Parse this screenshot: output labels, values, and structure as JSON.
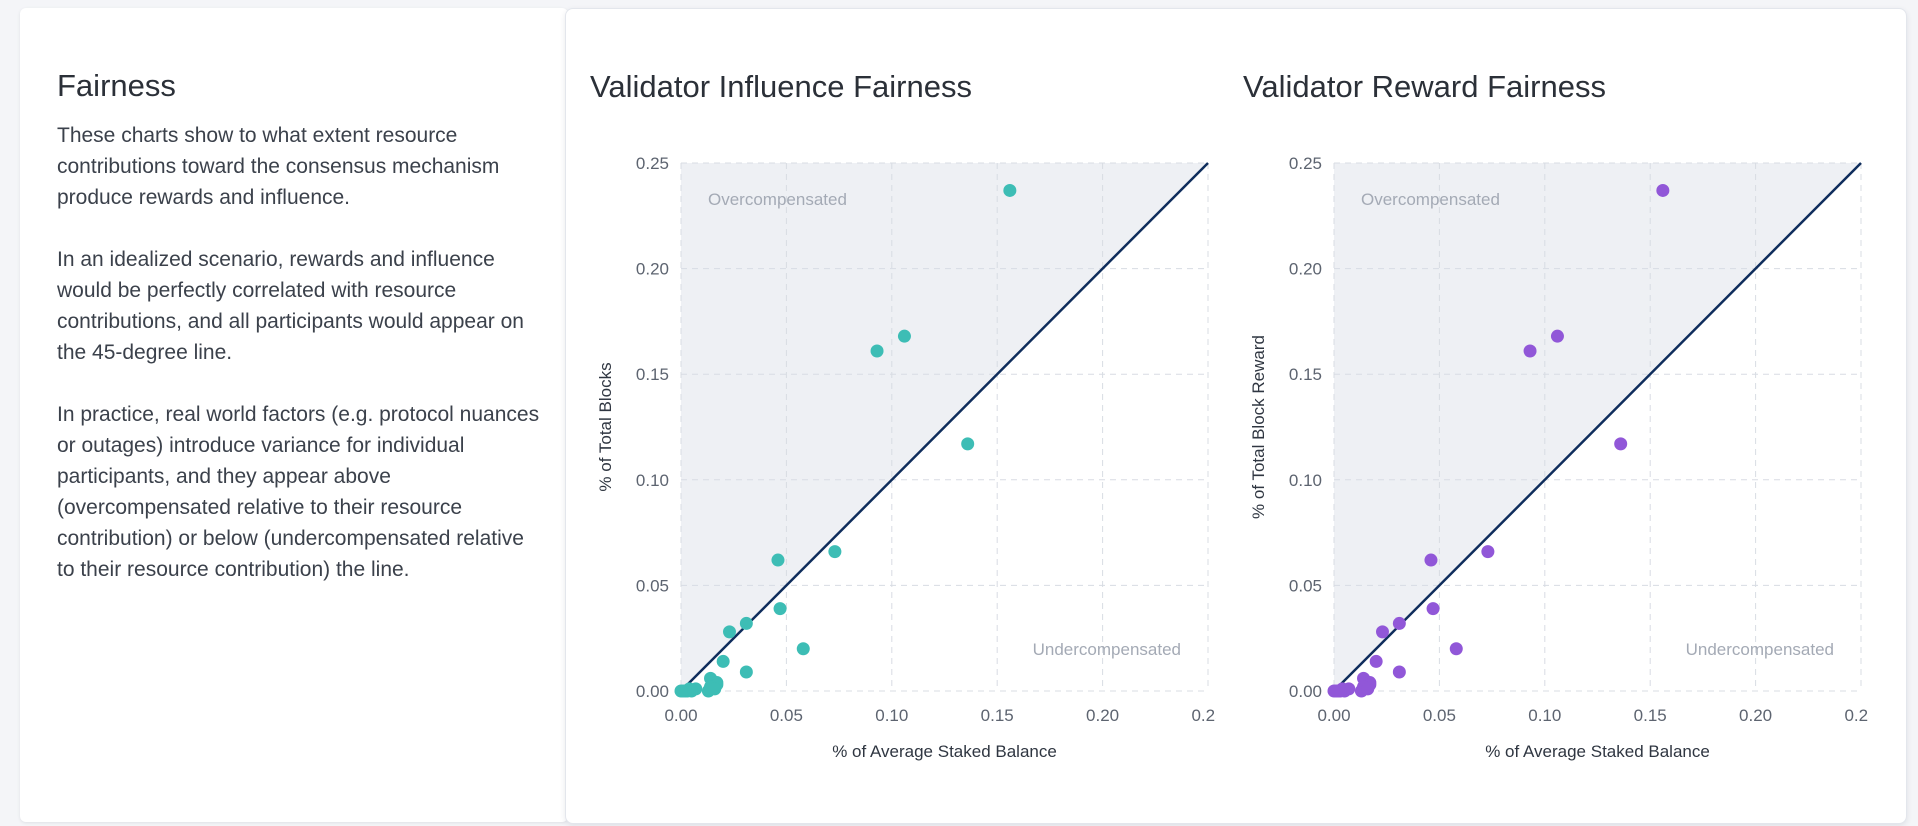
{
  "intro": {
    "title": "Fairness",
    "paragraphs": [
      "These charts show to what extent resource contributions toward the consensus mechanism produce rewards and influence.",
      "In an idealized scenario, rewards and influence would be perfectly correlated with resource contributions, and all participants would appear on the 45-degree line.",
      "In practice, real world factors (e.g. protocol nuances or outages) introduce variance for individual participants, and they appear above (overcompensated relative to their resource contribution) or below (undercompensated relative to their resource contribution) the line."
    ]
  },
  "colors": {
    "influence_points": "#3dbdb5",
    "reward_points": "#9157d8",
    "diagonal": "#0f2d5c",
    "shaded_region": "#eef0f4",
    "grid": "#d8dce3"
  },
  "chart_data": [
    {
      "type": "scatter",
      "title": "Validator Influence Fairness",
      "xlabel": "% of Average Staked Balance",
      "ylabel": "% of Total Blocks",
      "xlim": [
        0,
        0.25
      ],
      "ylim": [
        0,
        0.25
      ],
      "ticks": [
        "0.00",
        "0.05",
        "0.10",
        "0.15",
        "0.20",
        "0.25"
      ],
      "grid": true,
      "reference_line": "y = x",
      "region_labels": {
        "above": "Overcompensated",
        "below": "Undercompensated"
      },
      "point_color": "#3dbdb5",
      "series": [
        {
          "x": [
            0.156,
            0.106,
            0.093,
            0.136,
            0.073,
            0.046,
            0.047,
            0.058,
            0.031,
            0.023,
            0.031,
            0.02,
            0.014,
            0.017,
            0.017,
            0.014,
            0.013,
            0.016,
            0.007,
            0.005,
            0.004,
            0.003,
            0.002,
            0.001,
            0.0
          ],
          "y": [
            0.237,
            0.168,
            0.161,
            0.117,
            0.066,
            0.062,
            0.039,
            0.02,
            0.032,
            0.028,
            0.009,
            0.014,
            0.006,
            0.004,
            0.003,
            0.002,
            0.0,
            0.001,
            0.001,
            0.0,
            0.001,
            0.0,
            0.0,
            0.0,
            0.0
          ]
        }
      ]
    },
    {
      "type": "scatter",
      "title": "Validator Reward Fairness",
      "xlabel": "% of Average Staked Balance",
      "ylabel": "% of Total Block Reward",
      "xlim": [
        0,
        0.25
      ],
      "ylim": [
        0,
        0.25
      ],
      "ticks": [
        "0.00",
        "0.05",
        "0.10",
        "0.15",
        "0.20",
        "0.25"
      ],
      "grid": true,
      "reference_line": "y = x",
      "region_labels": {
        "above": "Overcompensated",
        "below": "Undercompensated"
      },
      "point_color": "#9157d8",
      "series": [
        {
          "x": [
            0.156,
            0.106,
            0.093,
            0.136,
            0.073,
            0.046,
            0.047,
            0.058,
            0.031,
            0.023,
            0.031,
            0.02,
            0.014,
            0.017,
            0.017,
            0.014,
            0.013,
            0.016,
            0.007,
            0.005,
            0.004,
            0.003,
            0.002,
            0.001,
            0.0
          ],
          "y": [
            0.237,
            0.168,
            0.161,
            0.117,
            0.066,
            0.062,
            0.039,
            0.02,
            0.032,
            0.028,
            0.009,
            0.014,
            0.006,
            0.004,
            0.003,
            0.002,
            0.0,
            0.001,
            0.001,
            0.0,
            0.001,
            0.0,
            0.0,
            0.0,
            0.0
          ]
        }
      ]
    }
  ]
}
